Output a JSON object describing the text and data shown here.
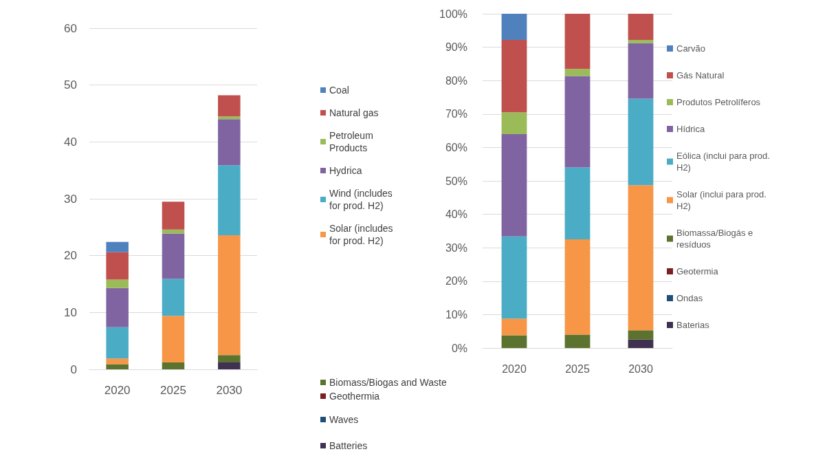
{
  "chart_data": [
    {
      "type": "bar",
      "stacked": true,
      "categories": [
        "2020",
        "2025",
        "2030"
      ],
      "ylim": [
        0,
        60
      ],
      "yticks": [
        0,
        10,
        20,
        30,
        40,
        50,
        60
      ],
      "grid": "y",
      "legend": "right",
      "series": [
        {
          "name": "Batteries",
          "color": "#403151",
          "values": [
            null,
            null,
            1.2
          ]
        },
        {
          "name": "Waves",
          "color": "#1f4e79",
          "values": [
            null,
            null,
            null
          ]
        },
        {
          "name": "Geothermia",
          "color": "#7b2020",
          "values": [
            null,
            null,
            null
          ]
        },
        {
          "name": "Biomass/Biogas and Waste",
          "color": "#5b732f",
          "values": [
            0.9,
            1.2,
            1.3
          ]
        },
        {
          "name": "Solar (includes for prod. H2)",
          "color": "#f79646",
          "values": [
            1.0,
            8.2,
            21.1
          ]
        },
        {
          "name": "Wind (includes for prod. H2)",
          "color": "#4bacc6",
          "values": [
            5.5,
            6.5,
            12.3
          ]
        },
        {
          "name": "Hydrica",
          "color": "#8064a2",
          "values": [
            6.9,
            8.0,
            8.1
          ]
        },
        {
          "name": "Petroleum Products",
          "color": "#9bbb59",
          "values": [
            1.5,
            0.7,
            0.5
          ]
        },
        {
          "name": "Natural gas",
          "color": "#c0504d",
          "values": [
            4.8,
            4.9,
            3.7
          ]
        },
        {
          "name": "Coal",
          "color": "#4f81bd",
          "values": [
            1.8,
            null,
            null
          ]
        }
      ]
    },
    {
      "type": "bar",
      "stacked": true,
      "categories": [
        "2020",
        "2025",
        "2030"
      ],
      "ylim": [
        0,
        100
      ],
      "yticks": [
        {
          "value": 0,
          "label": "0%"
        },
        {
          "value": 10,
          "label": "10%"
        },
        {
          "value": 20,
          "label": "20%"
        },
        {
          "value": 30,
          "label": "30%"
        },
        {
          "value": 40,
          "label": "40%"
        },
        {
          "value": 50,
          "label": "50%"
        },
        {
          "value": 60,
          "label": "60%"
        },
        {
          "value": 70,
          "label": "70%"
        },
        {
          "value": 80,
          "label": "80%"
        },
        {
          "value": 90,
          "label": "90%"
        },
        {
          "value": 100,
          "label": "100%"
        }
      ],
      "grid": "y",
      "legend": "right",
      "series": [
        {
          "name": "Baterias",
          "color": "#403151",
          "values": [
            null,
            null,
            2.5
          ]
        },
        {
          "name": "Ondas",
          "color": "#1f4e79",
          "values": [
            null,
            null,
            null
          ]
        },
        {
          "name": "Geotermia",
          "color": "#7b2020",
          "values": [
            null,
            null,
            null
          ]
        },
        {
          "name": "Biomassa/Biogás e resíduos",
          "color": "#5b732f",
          "values": [
            3.8,
            4.0,
            2.8
          ]
        },
        {
          "name": "Solar (inclui para prod. H2)",
          "color": "#f79646",
          "values": [
            5.0,
            28.5,
            43.4
          ]
        },
        {
          "name": "Eólica (inclui para prod. H2)",
          "color": "#4bacc6",
          "values": [
            24.6,
            21.5,
            25.9
          ]
        },
        {
          "name": "Hídrica",
          "color": "#8064a2",
          "values": [
            30.6,
            27.4,
            16.6
          ]
        },
        {
          "name": "Produtos Petrolíferos",
          "color": "#9bbb59",
          "values": [
            6.5,
            2.1,
            1.0
          ]
        },
        {
          "name": "Gás Natural",
          "color": "#c0504d",
          "values": [
            21.7,
            16.5,
            7.8
          ]
        },
        {
          "name": "Carvão",
          "color": "#4f81bd",
          "values": [
            7.8,
            null,
            null
          ]
        }
      ]
    }
  ]
}
